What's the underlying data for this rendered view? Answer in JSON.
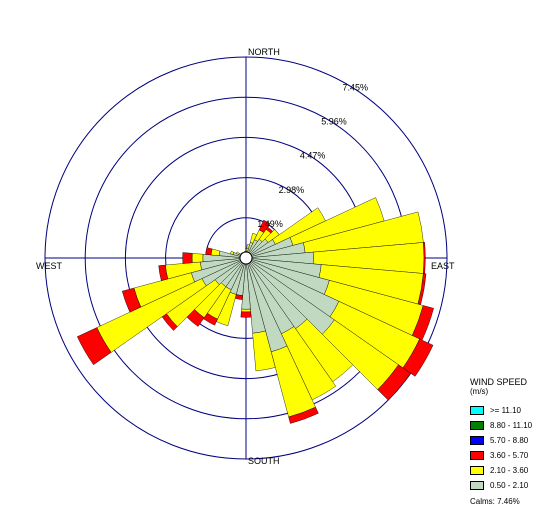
{
  "chart_data": {
    "type": "windrose",
    "directions": {
      "north": "NORTH",
      "south": "SOUTH",
      "east": "EAST",
      "west": "WEST"
    },
    "ring_labels": [
      "1.49%",
      "2.98%",
      "4.47%",
      "5.96%",
      "7.45%"
    ],
    "ring_values": [
      1.49,
      2.98,
      4.47,
      5.96,
      7.45
    ],
    "legend": {
      "title": "WIND SPEED",
      "unit": "(m/s)",
      "classes": [
        {
          "label": ">= 11.10",
          "color": "#00ffff"
        },
        {
          "label": "8.80 - 11.10",
          "color": "#008000"
        },
        {
          "label": "5.70 - 8.80",
          "color": "#0000ff"
        },
        {
          "label": "3.60 - 5.70",
          "color": "#ff0000"
        },
        {
          "label": "2.10 - 3.60",
          "color": "#ffff00"
        },
        {
          "label": "0.50 - 2.10",
          "color": "#c0d9c0"
        }
      ],
      "calms": "Calms: 7.46%"
    },
    "sector_width_deg": 10,
    "class_order": [
      "0.50 - 2.10",
      "2.10 - 3.60",
      "3.60 - 5.70"
    ],
    "sectors": [
      {
        "dir": 0,
        "values": [
          0.25,
          0.1,
          0.0
        ]
      },
      {
        "dir": 10,
        "values": [
          0.35,
          0.15,
          0.0
        ]
      },
      {
        "dir": 20,
        "values": [
          0.6,
          0.35,
          0.0
        ]
      },
      {
        "dir": 30,
        "values": [
          0.75,
          0.4,
          0.4
        ]
      },
      {
        "dir": 40,
        "values": [
          0.85,
          0.45,
          0.1
        ]
      },
      {
        "dir": 50,
        "values": [
          1.0,
          0.5,
          0.0
        ]
      },
      {
        "dir": 60,
        "values": [
          1.2,
          2.05,
          0.0
        ]
      },
      {
        "dir": 70,
        "values": [
          1.8,
          3.5,
          0.0
        ]
      },
      {
        "dir": 80,
        "values": [
          2.2,
          4.4,
          0.0
        ]
      },
      {
        "dir": 90,
        "values": [
          2.5,
          4.1,
          0.05
        ]
      },
      {
        "dir": 100,
        "values": [
          2.8,
          3.8,
          0.1
        ]
      },
      {
        "dir": 110,
        "values": [
          3.2,
          3.6,
          0.4
        ]
      },
      {
        "dir": 120,
        "values": [
          3.8,
          3.3,
          0.55
        ]
      },
      {
        "dir": 130,
        "values": [
          4.0,
          2.9,
          0.55
        ]
      },
      {
        "dir": 140,
        "values": [
          3.2,
          2.4,
          0.0
        ]
      },
      {
        "dir": 150,
        "values": [
          3.1,
          2.7,
          0.0
        ]
      },
      {
        "dir": 160,
        "values": [
          3.6,
          2.5,
          0.25
        ]
      },
      {
        "dir": 170,
        "values": [
          2.8,
          1.4,
          0.0
        ]
      },
      {
        "dir": 180,
        "values": [
          1.9,
          0.1,
          0.2
        ]
      },
      {
        "dir": 190,
        "values": [
          1.4,
          0.0,
          0.15
        ]
      },
      {
        "dir": 200,
        "values": [
          1.4,
          1.2,
          0.0
        ]
      },
      {
        "dir": 210,
        "values": [
          1.3,
          1.2,
          0.25
        ]
      },
      {
        "dir": 220,
        "values": [
          1.3,
          1.4,
          0.4
        ]
      },
      {
        "dir": 230,
        "values": [
          1.4,
          2.2,
          0.2
        ]
      },
      {
        "dir": 240,
        "values": [
          1.8,
          4.3,
          0.8
        ]
      },
      {
        "dir": 250,
        "values": [
          2.1,
          2.2,
          0.45
        ]
      },
      {
        "dir": 260,
        "values": [
          1.7,
          1.3,
          0.25
        ]
      },
      {
        "dir": 270,
        "values": [
          1.6,
          0.4,
          0.35
        ]
      },
      {
        "dir": 280,
        "values": [
          1.0,
          0.3,
          0.2
        ]
      },
      {
        "dir": 290,
        "values": [
          0.5,
          0.1,
          0.0
        ]
      },
      {
        "dir": 300,
        "values": [
          0.3,
          0.1,
          0.0
        ]
      },
      {
        "dir": 310,
        "values": [
          0.2,
          0.05,
          0.0
        ]
      },
      {
        "dir": 320,
        "values": [
          0.2,
          0.05,
          0.0
        ]
      },
      {
        "dir": 330,
        "values": [
          0.2,
          0.0,
          0.0
        ]
      },
      {
        "dir": 340,
        "values": [
          0.2,
          0.0,
          0.0
        ]
      },
      {
        "dir": 350,
        "values": [
          0.2,
          0.05,
          0.0
        ]
      }
    ]
  }
}
